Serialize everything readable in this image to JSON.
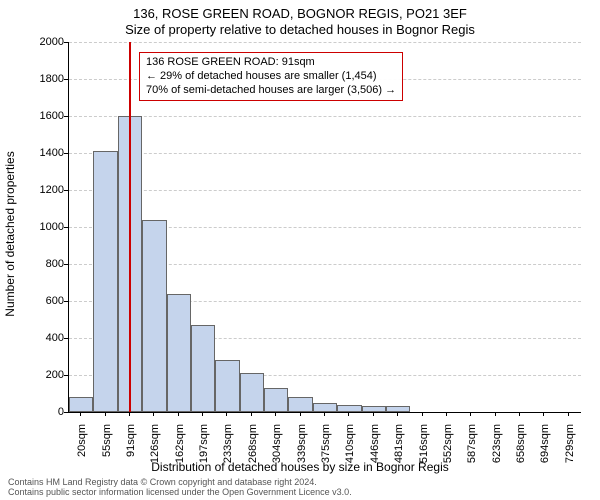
{
  "title1": "136, ROSE GREEN ROAD, BOGNOR REGIS, PO21 3EF",
  "title2": "Size of property relative to detached houses in Bognor Regis",
  "ylabel": "Number of detached properties",
  "xlabel": "Distribution of detached houses by size in Bognor Regis",
  "footer1": "Contains HM Land Registry data © Crown copyright and database right 2024.",
  "footer2": "Contains public sector information licensed under the Open Government Licence v3.0.",
  "chart": {
    "type": "bar",
    "background_color": "#ffffff",
    "grid_color": "#cccccc",
    "bar_fill": "#c5d4ec",
    "bar_border": "#666666",
    "highlight_color": "#cc0000",
    "highlight_category_index": 2,
    "ylim": [
      0,
      2000
    ],
    "ytick_step": 200,
    "categories": [
      "20sqm",
      "55sqm",
      "91sqm",
      "126sqm",
      "162sqm",
      "197sqm",
      "233sqm",
      "268sqm",
      "304sqm",
      "339sqm",
      "375sqm",
      "410sqm",
      "446sqm",
      "481sqm",
      "516sqm",
      "552sqm",
      "587sqm",
      "623sqm",
      "658sqm",
      "694sqm",
      "729sqm"
    ],
    "values": [
      80,
      1410,
      1600,
      1040,
      640,
      470,
      280,
      210,
      130,
      80,
      50,
      40,
      30,
      30,
      0,
      0,
      0,
      0,
      0,
      0,
      0
    ],
    "bar_width_ratio": 1.0,
    "title_fontsize": 13,
    "label_fontsize": 12,
    "tick_fontsize": 11
  },
  "annotation": {
    "line1": "136 ROSE GREEN ROAD: 91sqm",
    "line2": "← 29% of detached houses are smaller (1,454)",
    "line3": "70% of semi-detached houses are larger (3,506) →",
    "border_color": "#cc0000"
  }
}
